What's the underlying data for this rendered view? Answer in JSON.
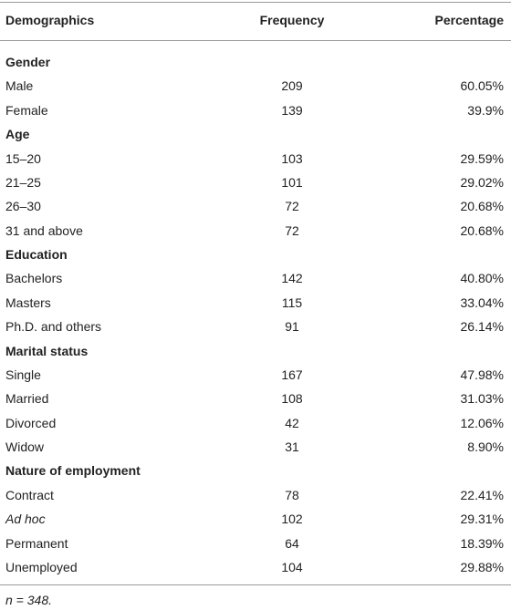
{
  "table": {
    "header": [
      "Demographics",
      "Frequency",
      "Percentage"
    ],
    "sections": [
      {
        "title": "Gender",
        "rows": [
          [
            "Male",
            "209",
            "60.05%"
          ],
          [
            "Female",
            "139",
            "39.9%"
          ]
        ]
      },
      {
        "title": "Age",
        "rows": [
          [
            "15–20",
            "103",
            "29.59%"
          ],
          [
            "21–25",
            "101",
            "29.02%"
          ],
          [
            "26–30",
            "72",
            "20.68%"
          ],
          [
            "31 and above",
            "72",
            "20.68%"
          ]
        ]
      },
      {
        "title": "Education",
        "rows": [
          [
            "Bachelors",
            "142",
            "40.80%"
          ],
          [
            "Masters",
            "115",
            "33.04%"
          ],
          [
            "Ph.D. and others",
            "91",
            "26.14%"
          ]
        ]
      },
      {
        "title": "Marital status",
        "rows": [
          [
            "Single",
            "167",
            "47.98%"
          ],
          [
            "Married",
            "108",
            "31.03%"
          ],
          [
            "Divorced",
            "42",
            "12.06%"
          ],
          [
            "Widow",
            "31",
            "8.90%"
          ]
        ]
      },
      {
        "title": "Nature of employment",
        "rows": [
          [
            "Contract",
            "78",
            "22.41%"
          ],
          [
            "Ad hoc",
            "102",
            "29.31%"
          ],
          [
            "Permanent",
            "64",
            "18.39%"
          ],
          [
            "Unemployed",
            "104",
            "29.88%"
          ]
        ]
      }
    ],
    "footnote": "n = 348."
  }
}
